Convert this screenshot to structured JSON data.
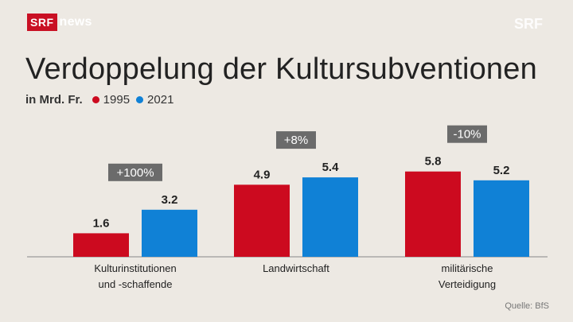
{
  "brand": {
    "srf": "SRF",
    "news": "news",
    "bug": "SRF"
  },
  "title": "Verdoppelung der Kultursubventionen",
  "subtitle": {
    "unit": "in Mrd. Fr."
  },
  "source": "Quelle: BfS",
  "colors": {
    "series_1995": "#cc0a1f",
    "series_2021": "#1081d6",
    "background": "#ede9e3",
    "change_badge": "#6b6b6b"
  },
  "chart_data": {
    "type": "bar",
    "title": "Verdoppelung der Kultursubventionen",
    "ylabel": "in Mrd. Fr.",
    "categories": [
      "Kulturinstitutionen\nund -schaffende",
      "Landwirtschaft",
      "militärische\nVerteidigung"
    ],
    "series": [
      {
        "name": "1995",
        "color": "#cc0a1f",
        "values": [
          1.6,
          4.9,
          5.8
        ],
        "labels": [
          "1.6",
          "4.9",
          "5.8"
        ]
      },
      {
        "name": "2021",
        "color": "#1081d6",
        "values": [
          3.2,
          5.4,
          5.2
        ],
        "labels": [
          "3.2",
          "5.4",
          "5.2"
        ]
      }
    ],
    "changes": [
      "+100%",
      "+8%",
      "-10%"
    ],
    "ylim": [
      0,
      6.5
    ],
    "grid": false,
    "legend": "top-left"
  }
}
